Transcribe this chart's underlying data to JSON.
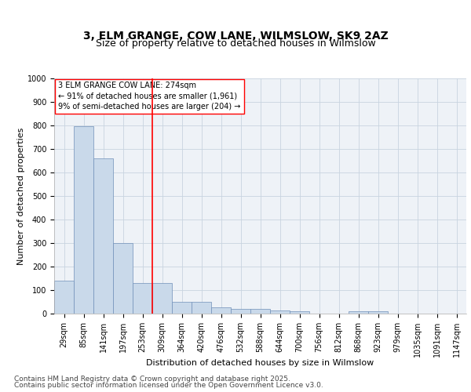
{
  "title_line1": "3, ELM GRANGE, COW LANE, WILMSLOW, SK9 2AZ",
  "title_line2": "Size of property relative to detached houses in Wilmslow",
  "xlabel": "Distribution of detached houses by size in Wilmslow",
  "ylabel": "Number of detached properties",
  "categories": [
    "29sqm",
    "85sqm",
    "141sqm",
    "197sqm",
    "253sqm",
    "309sqm",
    "364sqm",
    "420sqm",
    "476sqm",
    "532sqm",
    "588sqm",
    "644sqm",
    "700sqm",
    "756sqm",
    "812sqm",
    "868sqm",
    "923sqm",
    "979sqm",
    "1035sqm",
    "1091sqm",
    "1147sqm"
  ],
  "values": [
    140,
    797,
    660,
    300,
    130,
    130,
    50,
    50,
    28,
    20,
    20,
    12,
    10,
    0,
    0,
    10,
    10,
    0,
    0,
    0,
    0
  ],
  "bar_color": "#c9d9ea",
  "bar_edge_color": "#7090b8",
  "vline_x": 4.5,
  "vline_color": "red",
  "annotation_text": "3 ELM GRANGE COW LANE: 274sqm\n← 91% of detached houses are smaller (1,961)\n9% of semi-detached houses are larger (204) →",
  "annotation_box_color": "white",
  "annotation_box_edge": "red",
  "ylim": [
    0,
    1000
  ],
  "yticks": [
    0,
    100,
    200,
    300,
    400,
    500,
    600,
    700,
    800,
    900,
    1000
  ],
  "grid_color": "#c8d4e0",
  "background_color": "#eef2f7",
  "footer_line1": "Contains HM Land Registry data © Crown copyright and database right 2025.",
  "footer_line2": "Contains public sector information licensed under the Open Government Licence v3.0.",
  "title_fontsize": 10,
  "subtitle_fontsize": 9,
  "axis_label_fontsize": 8,
  "tick_fontsize": 7,
  "annotation_fontsize": 7,
  "footer_fontsize": 6.5
}
